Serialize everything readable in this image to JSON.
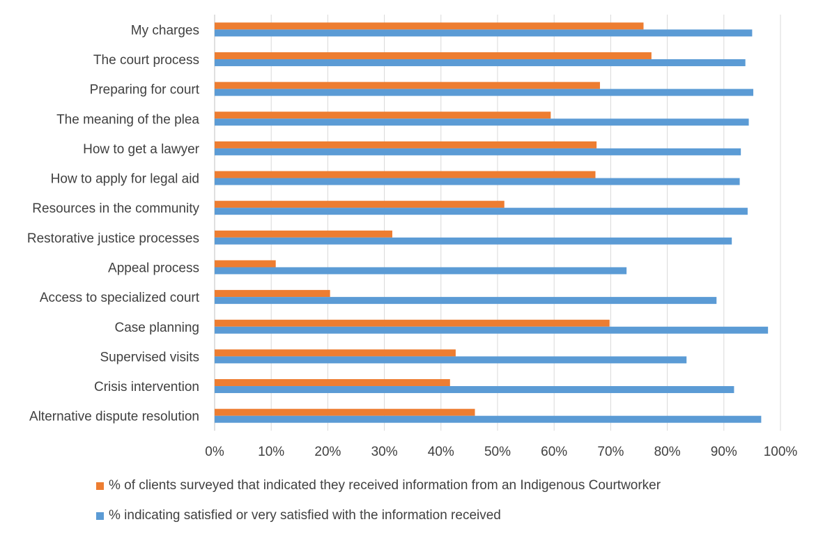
{
  "chart_data": {
    "type": "bar",
    "orientation": "horizontal",
    "categories": [
      "My charges",
      "The court process",
      "Preparing for court",
      "The meaning of the plea",
      "How to get a lawyer",
      "How to apply for legal aid",
      "Resources in the community",
      "Restorative justice processes",
      "Appeal process",
      "Access to specialized court",
      "Case planning",
      "Supervised visits",
      "Crisis intervention",
      "Alternative dispute resolution"
    ],
    "series": [
      {
        "name": "% of clients surveyed that indicated they received information from an Indigenous Courtworker",
        "color": "#ED7D31",
        "values": [
          75.8,
          77.2,
          68.1,
          59.4,
          67.5,
          67.3,
          51.2,
          31.4,
          10.8,
          20.4,
          69.8,
          42.6,
          41.6,
          46.0
        ]
      },
      {
        "name": "% indicating satisfied or very satisfied with the information received",
        "color": "#5B9BD5",
        "values": [
          95.0,
          93.8,
          95.2,
          94.4,
          93.0,
          92.8,
          94.2,
          91.4,
          72.8,
          88.7,
          97.8,
          83.4,
          91.8,
          96.6
        ]
      }
    ],
    "x_ticks": [
      "0%",
      "10%",
      "20%",
      "30%",
      "40%",
      "50%",
      "60%",
      "70%",
      "80%",
      "90%",
      "100%"
    ],
    "xlim": [
      0,
      100
    ],
    "grid": true,
    "legend_position": "bottom"
  }
}
